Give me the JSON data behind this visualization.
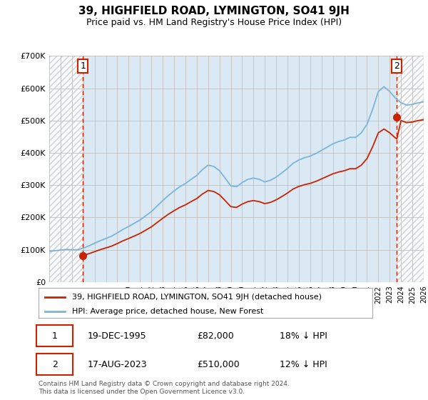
{
  "title": "39, HIGHFIELD ROAD, LYMINGTON, SO41 9JH",
  "subtitle": "Price paid vs. HM Land Registry's House Price Index (HPI)",
  "ylim": [
    0,
    700000
  ],
  "yticks": [
    0,
    100000,
    200000,
    300000,
    400000,
    500000,
    600000,
    700000
  ],
  "ytick_labels": [
    "£0",
    "£100K",
    "£200K",
    "£300K",
    "£400K",
    "£500K",
    "£600K",
    "£700K"
  ],
  "hpi_color": "#7ab6d9",
  "price_color": "#cc2200",
  "dashed_color": "#cc2200",
  "plot_bg_color": "#dbe9f5",
  "hatch_color": "#c8c8c8",
  "grid_color": "#c0c0c0",
  "legend_label_price": "39, HIGHFIELD ROAD, LYMINGTON, SO41 9JH (detached house)",
  "legend_label_hpi": "HPI: Average price, detached house, New Forest",
  "transaction1_label": "1",
  "transaction1_date": "19-DEC-1995",
  "transaction1_price": "£82,000",
  "transaction1_note": "18% ↓ HPI",
  "transaction2_label": "2",
  "transaction2_date": "17-AUG-2023",
  "transaction2_price": "£510,000",
  "transaction2_note": "12% ↓ HPI",
  "footer": "Contains HM Land Registry data © Crown copyright and database right 2024.\nThis data is licensed under the Open Government Licence v3.0.",
  "transaction1_x": 1995.97,
  "transaction2_x": 2023.63,
  "transaction1_y": 82000,
  "transaction2_y": 510000,
  "xlim_left": 1993.0,
  "xlim_right": 2026.0
}
